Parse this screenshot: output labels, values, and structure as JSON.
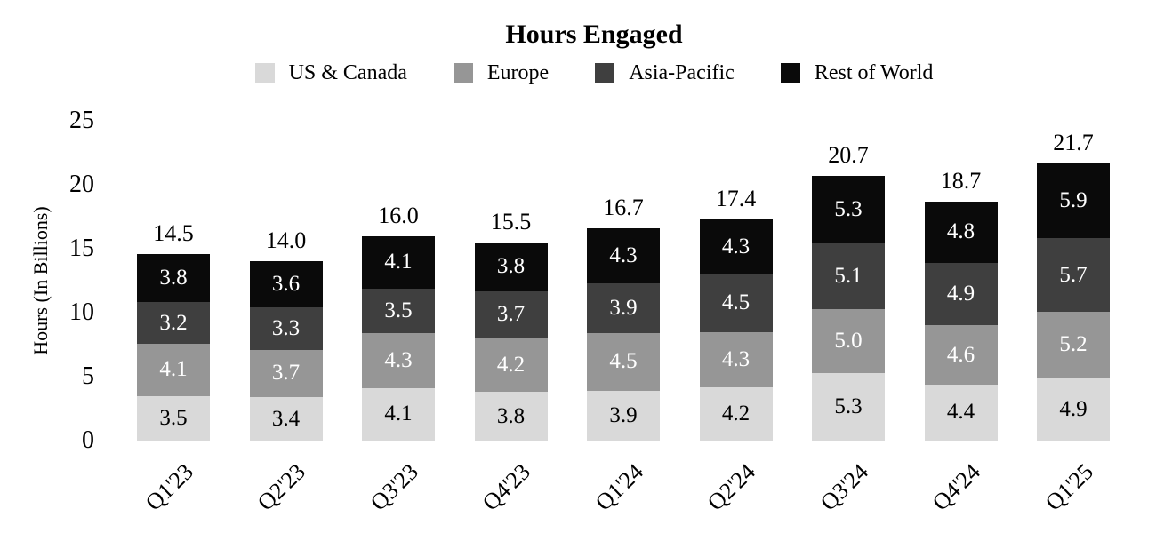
{
  "chart_data": {
    "type": "bar",
    "stacked": true,
    "title": "Hours Engaged",
    "ylabel": "Hours (In Billions)",
    "xlabel": "",
    "ylim": [
      0,
      25
    ],
    "y_ticks": [
      "0",
      "5",
      "10",
      "15",
      "20",
      "25"
    ],
    "grid": false,
    "legend_position": "top",
    "categories": [
      "Q1'23",
      "Q2'23",
      "Q3'23",
      "Q4'23",
      "Q1'24",
      "Q2'24",
      "Q3'24",
      "Q4'24",
      "Q1'25"
    ],
    "series": [
      {
        "name": "US & Canada",
        "color": "#D9D9D9",
        "label_color": "#000000",
        "values": [
          "3.5",
          "3.4",
          "4.1",
          "3.8",
          "3.9",
          "4.2",
          "5.3",
          "4.4",
          "4.9"
        ]
      },
      {
        "name": "Europe",
        "color": "#969696",
        "label_color": "#FFFFFF",
        "values": [
          "4.1",
          "3.7",
          "4.3",
          "4.2",
          "4.5",
          "4.3",
          "5.0",
          "4.6",
          "5.2"
        ]
      },
      {
        "name": "Asia-Pacific",
        "color": "#3F3F3F",
        "label_color": "#FFFFFF",
        "values": [
          "3.2",
          "3.3",
          "3.5",
          "3.7",
          "3.9",
          "4.5",
          "5.1",
          "4.9",
          "5.7"
        ]
      },
      {
        "name": "Rest of World",
        "color": "#0A0A0A",
        "label_color": "#FFFFFF",
        "values": [
          "3.8",
          "3.6",
          "4.1",
          "3.8",
          "4.3",
          "4.3",
          "5.3",
          "4.8",
          "5.9"
        ]
      }
    ],
    "totals": [
      "14.5",
      "14.0",
      "16.0",
      "15.5",
      "16.7",
      "17.4",
      "20.7",
      "18.7",
      "21.7"
    ]
  }
}
